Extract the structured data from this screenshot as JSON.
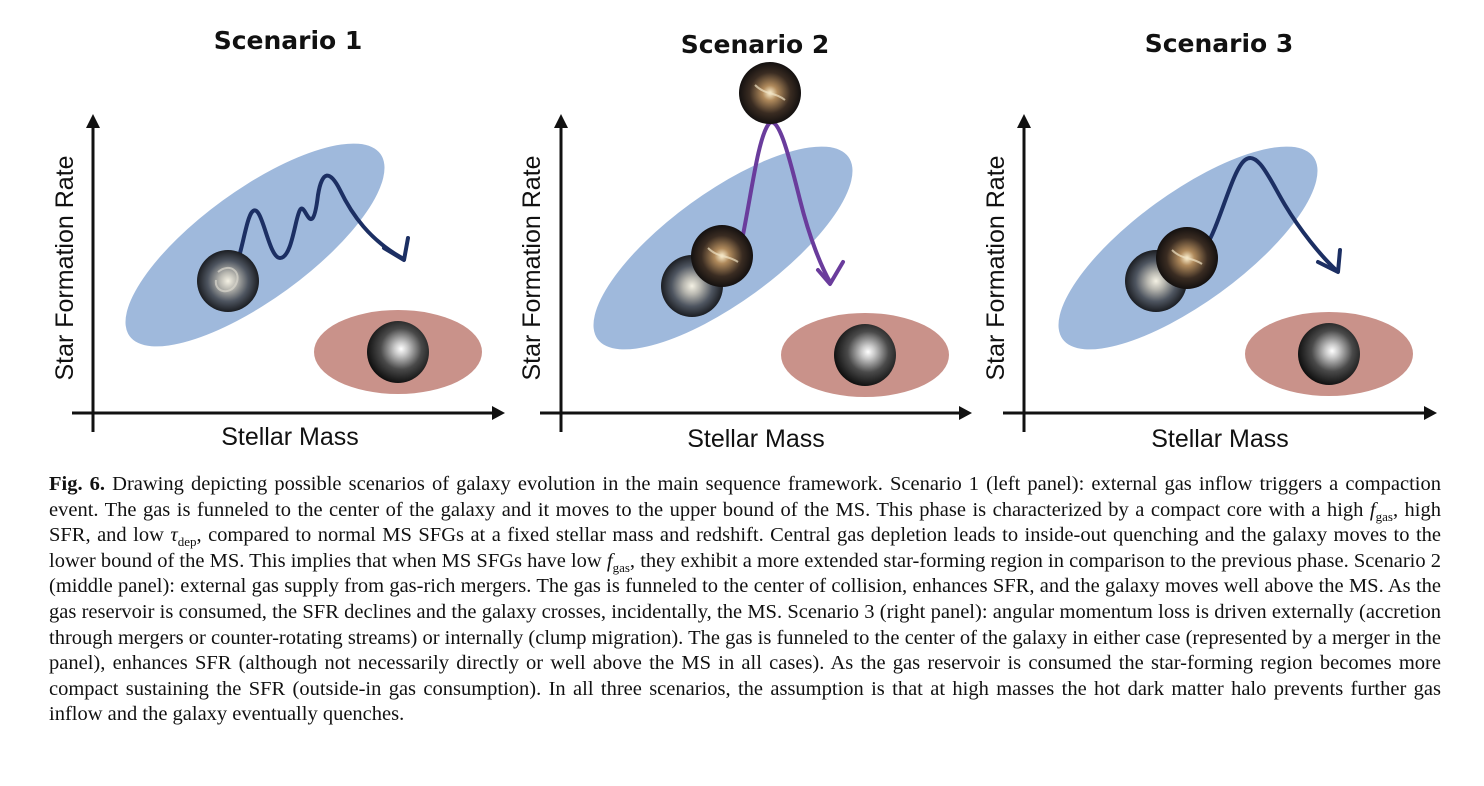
{
  "panels": [
    {
      "title": "Scenario 1",
      "xlabel": "Stellar Mass",
      "ylabel": "Star Formation Rate"
    },
    {
      "title": "Scenario 2",
      "xlabel": "Stellar Mass",
      "ylabel": "Star Formation Rate"
    },
    {
      "title": "Scenario 3",
      "xlabel": "Stellar Mass",
      "ylabel": "Star Formation Rate"
    }
  ],
  "colors": {
    "main_sequence": "#9fb9dc",
    "quiescent_region": "#c9928a",
    "path_scenario_1": "#1c2f63",
    "path_scenario_2": "#6a3c9c",
    "path_scenario_3": "#1c2f63"
  },
  "caption": {
    "label": "Fig. 6.",
    "p1": " Drawing depicting possible scenarios of galaxy evolution in the main sequence framework. Scenario 1 (left panel): external gas inflow triggers a compaction event. The gas is funneled to the center of the galaxy and it moves to the upper bound of the MS. This phase is characterized by a compact core with a high ",
    "f_sym": "f",
    "gas_sub": "gas",
    "p2": ", high SFR, and low ",
    "tau_sym": "τ",
    "dep_sub": "dep",
    "p3": ", compared to normal MS SFGs at a fixed stellar mass and redshift. Central gas depletion leads to inside-out quenching and the galaxy moves to the lower bound of the MS. This implies that when MS SFGs have low ",
    "f_sym2": "f",
    "gas_sub2": "gas",
    "p4": ", they exhibit a more extended star-forming region in comparison to the previous phase. Scenario 2 (middle panel): external gas supply from gas-rich mergers. The gas is funneled to the center of collision, enhances SFR, and the galaxy moves well above the MS. As the gas reservoir is consumed, the SFR declines and the galaxy crosses, incidentally, the MS. Scenario 3 (right panel): angular momentum loss is driven externally (accretion through mergers or counter-rotating streams) or internally (clump migration). The gas is funneled to the center of the galaxy in either case (represented by a merger in the panel), enhances SFR (although not necessarily directly or well above the MS in all cases). As the gas reservoir is consumed the star-forming region becomes more compact sustaining the SFR (outside-in gas consumption). In all three scenarios, the assumption is that at high masses the hot dark matter halo prevents further gas inflow and the galaxy eventually quenches."
  }
}
